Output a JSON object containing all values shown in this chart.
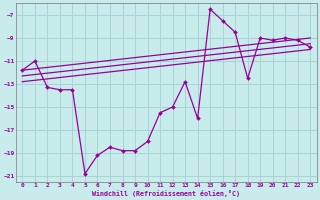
{
  "xlabel": "Windchill (Refroidissement éolien,°C)",
  "bg_color": "#c8ecec",
  "grid_color": "#aad4d4",
  "line_color": "#990099",
  "xlim": [
    -0.5,
    23.5
  ],
  "ylim": [
    -21.5,
    -6.0
  ],
  "yticks": [
    -21,
    -19,
    -17,
    -15,
    -13,
    -11,
    -9,
    -7
  ],
  "xticks": [
    0,
    1,
    2,
    3,
    4,
    5,
    6,
    7,
    8,
    9,
    10,
    11,
    12,
    13,
    14,
    15,
    16,
    17,
    18,
    19,
    20,
    21,
    22,
    23
  ],
  "series1_x": [
    0,
    1,
    2,
    3,
    4,
    5,
    6,
    7,
    8,
    9,
    10,
    11,
    12,
    13,
    14,
    15,
    16,
    17,
    18,
    19,
    20,
    21,
    22,
    23
  ],
  "series1_y": [
    -11.8,
    -11.0,
    -13.3,
    -13.5,
    -13.5,
    -20.8,
    -19.2,
    -18.5,
    -18.8,
    -18.8,
    -18.0,
    -15.5,
    -15.0,
    -12.8,
    -16.0,
    -6.5,
    -7.5,
    -8.5,
    -12.5,
    -9.0,
    -9.2,
    -9.0,
    -9.2,
    -9.8
  ],
  "trend_lines": [
    {
      "x": [
        0,
        23
      ],
      "y": [
        -11.8,
        -9.0
      ]
    },
    {
      "x": [
        0,
        23
      ],
      "y": [
        -12.3,
        -9.5
      ]
    },
    {
      "x": [
        0,
        23
      ],
      "y": [
        -12.8,
        -10.0
      ]
    }
  ]
}
